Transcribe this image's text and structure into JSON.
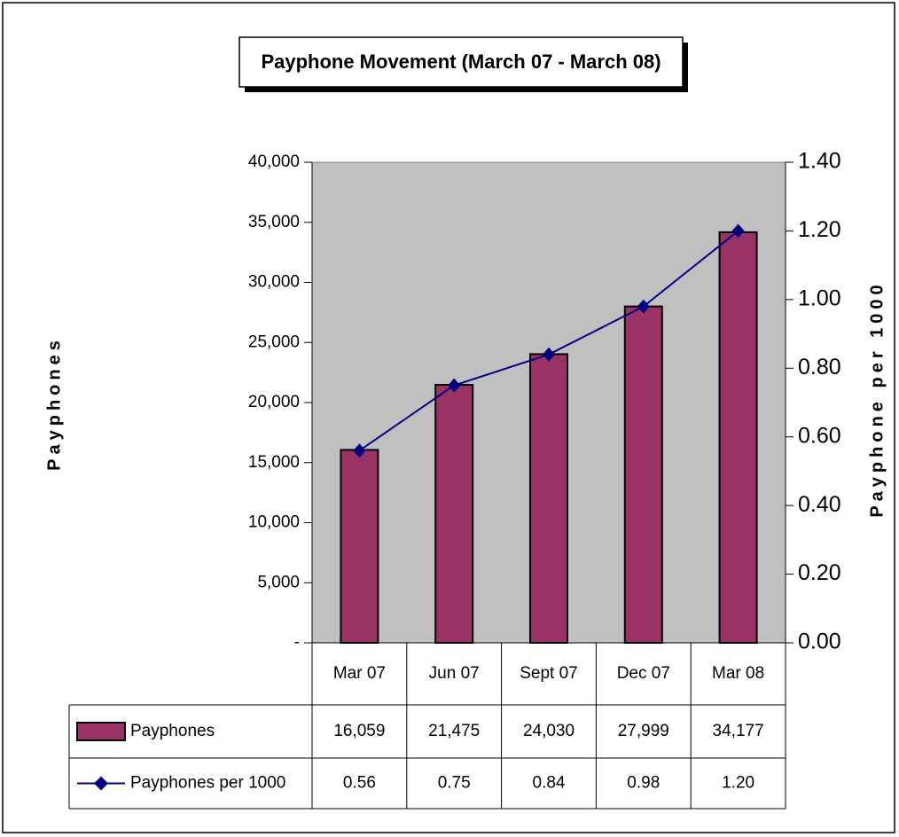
{
  "chart_data": {
    "type": "bar",
    "title": "Payphone Movement (March 07 - March 08)",
    "categories": [
      "Mar 07",
      "Jun 07",
      "Sept 07",
      "Dec 07",
      "Mar 08"
    ],
    "series": [
      {
        "name": "Payphones",
        "type": "bar",
        "color": "#993366",
        "values": [
          16059,
          21475,
          24030,
          27999,
          34177
        ],
        "value_labels": [
          "16,059",
          "21,475",
          "24,030",
          "27,999",
          "34,177"
        ]
      },
      {
        "name": "Payphones per 1000",
        "type": "line",
        "axis": "y2",
        "color": "#000080",
        "values": [
          0.56,
          0.75,
          0.84,
          0.98,
          1.2
        ],
        "value_labels": [
          "0.56",
          "0.75",
          "0.84",
          "0.98",
          "1.20"
        ]
      }
    ],
    "ylabel": "Payphones",
    "y2label": "Payphone per 1000",
    "ylim": [
      0,
      40000
    ],
    "yticks": [
      {
        "value": 0,
        "label": "-"
      },
      {
        "value": 5000,
        "label": "5,000"
      },
      {
        "value": 10000,
        "label": "10,000"
      },
      {
        "value": 15000,
        "label": "15,000"
      },
      {
        "value": 20000,
        "label": "20,000"
      },
      {
        "value": 25000,
        "label": "25,000"
      },
      {
        "value": 30000,
        "label": "30,000"
      },
      {
        "value": 35000,
        "label": "35,000"
      },
      {
        "value": 40000,
        "label": "40,000"
      }
    ],
    "y2lim": [
      0,
      1.4
    ],
    "y2ticks": [
      {
        "value": 0,
        "label": "0.00"
      },
      {
        "value": 0.2,
        "label": "0.20"
      },
      {
        "value": 0.4,
        "label": "0.40"
      },
      {
        "value": 0.6,
        "label": "0.60"
      },
      {
        "value": 0.8,
        "label": "0.80"
      },
      {
        "value": 1,
        "label": "1.00"
      },
      {
        "value": 1.2,
        "label": "1.20"
      },
      {
        "value": 1.4,
        "label": "1.40"
      }
    ],
    "plot_background": "#c0c0c0"
  }
}
